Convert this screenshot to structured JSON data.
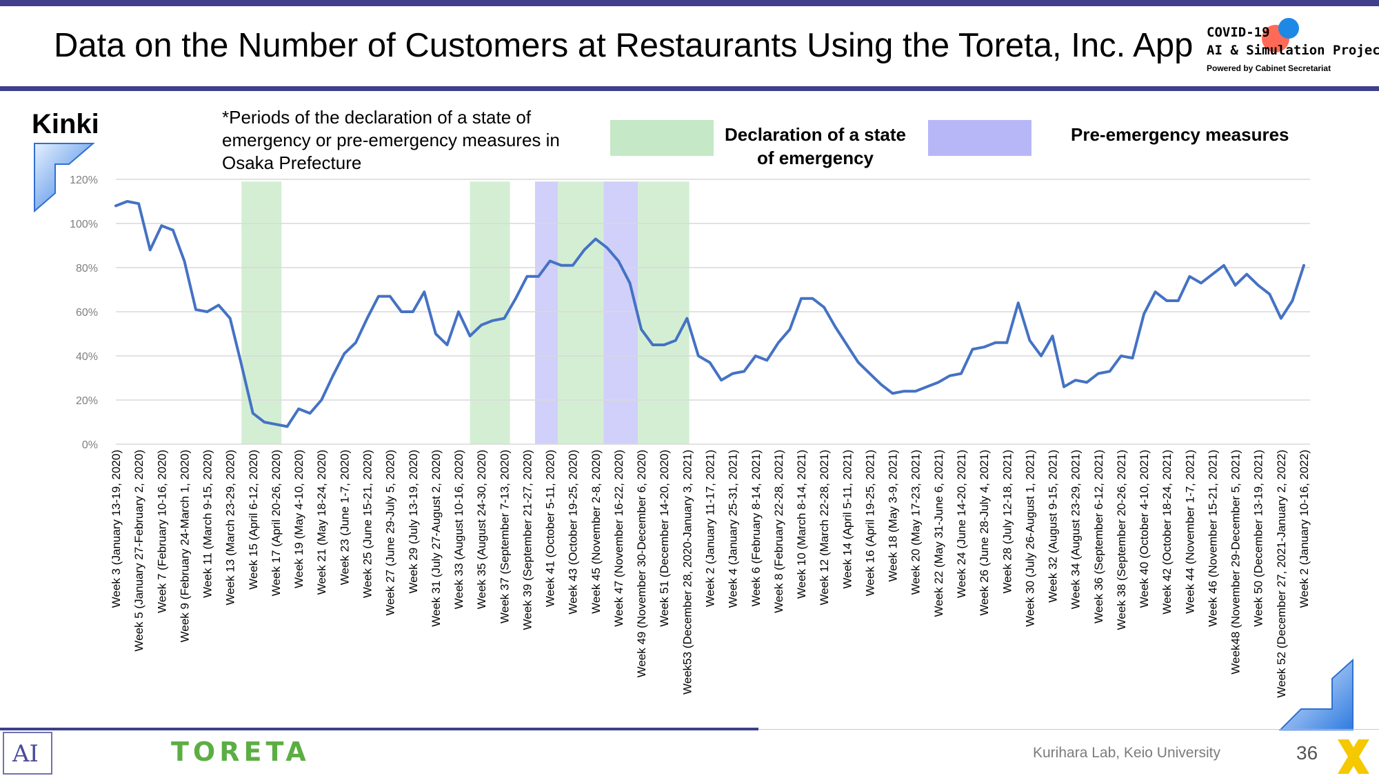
{
  "title": "Data on the Number of Customers at Restaurants Using the Toreta, Inc. App",
  "logo": {
    "line1": "COVID-19",
    "line2": "AI & Simulation Project",
    "line3": "Powered by Cabinet Secretariat"
  },
  "region": "Kinki",
  "note": "*Periods of the declaration of a state of emergency or pre-emergency measures in Osaka Prefecture",
  "legend": {
    "emergency": "Declaration of a state of emergency",
    "pre_emergency": "Pre-emergency measures",
    "emergency_color": "#c5e8c6",
    "pre_emergency_color": "#b7b7f8"
  },
  "footer": {
    "brand": "TORETA",
    "lab": "Kurihara Lab, Keio University",
    "page": "36",
    "keio_logo": "AI"
  },
  "chart_data": {
    "type": "line",
    "title": "",
    "xlabel": "",
    "ylabel": "",
    "ylim": [
      0,
      120
    ],
    "yticks": [
      "0%",
      "20%",
      "40%",
      "60%",
      "80%",
      "100%",
      "120%"
    ],
    "ytick_values": [
      0,
      20,
      40,
      60,
      80,
      100,
      120
    ],
    "grid": true,
    "line_color": "#4472c4",
    "x_labels": [
      "Week 3 (January 13-19, 2020)",
      "Week 5 (January 27-February 2, 2020)",
      "Week 7 (February 10-16, 2020)",
      "Week 9 (February 24-March 1, 2020)",
      "Week 11 (March 9-15, 2020)",
      "Week 13 (March 23-29, 2020)",
      "Week 15 (April 6-12, 2020)",
      "Week 17 (April 20-26, 2020)",
      "Week 19 (May 4-10, 2020)",
      "Week 21 (May 18-24, 2020)",
      "Week 23 (June 1-7, 2020)",
      "Week 25 (June 15-21, 2020)",
      "Week 27 (June 29-July 5, 2020)",
      "Week 29 (July 13-19, 2020)",
      "Week 31 (July 27-August 2, 2020)",
      "Week 33 (August 10-16, 2020)",
      "Week 35 (August 24-30, 2020)",
      "Week 37 (September 7-13, 2020)",
      "Week 39 (September 21-27, 2020)",
      "Week 41 (October 5-11, 2020)",
      "Week 43 (October 19-25, 2020)",
      "Week 45 (November 2-8, 2020)",
      "Week 47 (November 16-22, 2020)",
      "Week 49 (November 30-December 6, 2020)",
      "Week 51 (December 14-20, 2020)",
      "Week53 (December 28, 2020-January 3, 2021)",
      "Week 2 (January 11-17, 2021)",
      "Week 4 (January 25-31, 2021)",
      "Week 6 (February 8-14, 2021)",
      "Week 8 (February 22-28, 2021)",
      "Week 10 (March 8-14, 2021)",
      "Week 12 (March 22-28, 2021)",
      "Week 14 (April 5-11, 2021)",
      "Week 16 (April 19-25, 2021)",
      "Week 18 (May 3-9, 2021)",
      "Week 20 (May 17-23, 2021)",
      "Week 22 (May 31-June 6, 2021)",
      "Week 24 (June 14-20, 2021)",
      "Week 26 (June 28-July 4, 2021)",
      "Week 28 (July 12-18, 2021)",
      "Week 30 (July 26-August 1, 2021)",
      "Week 32 (August 9-15, 2021)",
      "Week 34 (August 23-29, 2021)",
      "Week 36 (September 6-12, 2021)",
      "Week 38 (September 20-26, 2021)",
      "Week 40 (October 4-10, 2021)",
      "Week 42 (October 18-24, 2021)",
      "Week 44 (November 1-7, 2021)",
      "Week 46 (November 15-21, 2021)",
      "Week48 (November 29-December 5, 2021)",
      "Week 50 (December 13-19, 2021)",
      "Week 52 (December 27, 2021-January 2, 2022)",
      "Week 2 (January 10-16, 2022)"
    ],
    "values": [
      108,
      110,
      109,
      88,
      99,
      97,
      83,
      61,
      60,
      63,
      57,
      36,
      14,
      10,
      9,
      8,
      16,
      14,
      20,
      31,
      41,
      46,
      57,
      67,
      67,
      60,
      60,
      69,
      50,
      45,
      60,
      49,
      54,
      56,
      57,
      66,
      76,
      76,
      83,
      81,
      81,
      88,
      93,
      89,
      83,
      73,
      52,
      45,
      45,
      47,
      57,
      40,
      37,
      29,
      32,
      33,
      40,
      38,
      46,
      52,
      66,
      66,
      62,
      53,
      45,
      37,
      32,
      27,
      23,
      24,
      24,
      26,
      28,
      31,
      32,
      43,
      44,
      46,
      46,
      64,
      47,
      40,
      49,
      26,
      29,
      28,
      32,
      33,
      40,
      39,
      59,
      69,
      65,
      65,
      76,
      73,
      77,
      81,
      72,
      77,
      72,
      68,
      57,
      65,
      81
    ],
    "shaded_periods": [
      {
        "type": "emergency",
        "start": 11.0,
        "end": 14.5
      },
      {
        "type": "emergency",
        "start": 31.0,
        "end": 34.5
      },
      {
        "type": "pre_emergency",
        "start": 36.7,
        "end": 38.7
      },
      {
        "type": "emergency",
        "start": 38.7,
        "end": 42.7
      },
      {
        "type": "pre_emergency",
        "start": 42.7,
        "end": 45.7
      },
      {
        "type": "emergency",
        "start": 45.7,
        "end": 50.2
      }
    ]
  }
}
